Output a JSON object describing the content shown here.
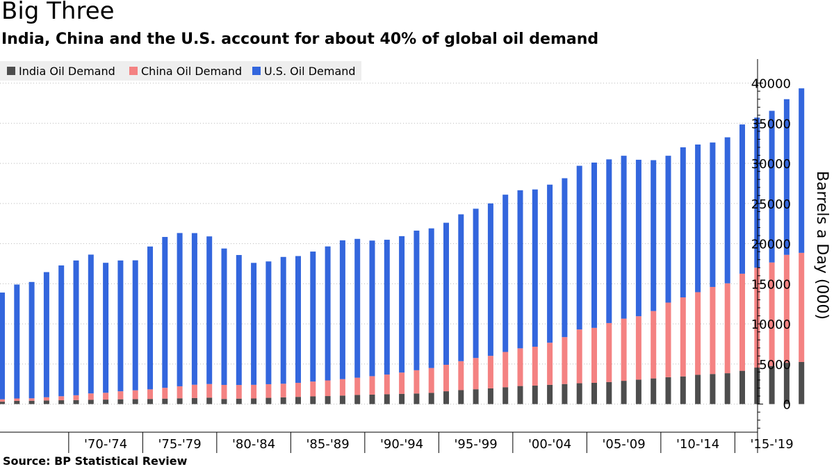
{
  "title": "Big Three",
  "subtitle": "India, China and the U.S. account for about 40% of global oil demand",
  "source": "Source:  BP Statistical Review",
  "colors": {
    "india": "#4d4d4d",
    "china": "#f48282",
    "us": "#3366dd"
  },
  "chart_data": {
    "type": "bar",
    "stacked": true,
    "x": [
      1965,
      1966,
      1967,
      1968,
      1969,
      1970,
      1971,
      1972,
      1973,
      1974,
      1975,
      1976,
      1977,
      1978,
      1979,
      1980,
      1981,
      1982,
      1983,
      1984,
      1985,
      1986,
      1987,
      1988,
      1989,
      1990,
      1991,
      1992,
      1993,
      1994,
      1995,
      1996,
      1997,
      1998,
      1999,
      2000,
      2001,
      2002,
      2003,
      2004,
      2005,
      2006,
      2007,
      2008,
      2009,
      2010,
      2011,
      2012,
      2013,
      2014,
      2015,
      2016,
      2017,
      2018,
      2019
    ],
    "series": [
      {
        "name": "India Oil Demand",
        "values": [
          300,
          400,
          420,
          450,
          480,
          500,
          530,
          560,
          600,
          620,
          640,
          680,
          720,
          760,
          800,
          640,
          680,
          700,
          780,
          840,
          900,
          960,
          1000,
          1060,
          1140,
          1180,
          1230,
          1280,
          1320,
          1400,
          1600,
          1750,
          1850,
          1960,
          2100,
          2250,
          2300,
          2400,
          2500,
          2600,
          2650,
          2750,
          2900,
          3050,
          3200,
          3350,
          3450,
          3650,
          3750,
          3850,
          4150,
          4550,
          4750,
          5150,
          5250
        ]
      },
      {
        "name": "China Oil Demand",
        "values": [
          300,
          300,
          300,
          400,
          500,
          600,
          800,
          850,
          1000,
          1100,
          1200,
          1350,
          1500,
          1650,
          1700,
          1750,
          1700,
          1700,
          1700,
          1700,
          1750,
          1850,
          1950,
          2050,
          2150,
          2300,
          2450,
          2650,
          2900,
          3100,
          3300,
          3600,
          3900,
          4050,
          4400,
          4700,
          4850,
          5250,
          5850,
          6700,
          6850,
          7350,
          7750,
          7900,
          8400,
          9300,
          9850,
          10300,
          10850,
          11200,
          12100,
          12450,
          12900,
          13450,
          13600
        ]
      },
      {
        "name": "U.S. Oil Demand",
        "values": [
          13300,
          14200,
          14500,
          15600,
          16300,
          16800,
          17300,
          16200,
          16300,
          16200,
          17800,
          18800,
          19100,
          18900,
          18400,
          17000,
          16200,
          15200,
          15300,
          15800,
          15800,
          16200,
          16700,
          17300,
          17300,
          16900,
          16800,
          17000,
          17400,
          17400,
          17700,
          18300,
          18600,
          19000,
          19600,
          19700,
          19600,
          19700,
          19800,
          20400,
          20600,
          20400,
          20300,
          19500,
          18800,
          18300,
          18700,
          18400,
          18000,
          18200,
          18600,
          18700,
          18900,
          19400,
          20500
        ]
      }
    ],
    "xtick_labels": [
      "'70-'74",
      "'75-'79",
      "'80-'84",
      "'85-'89",
      "'90-'94",
      "'95-'99",
      "'00-'04",
      "'05-'09",
      "'10-'14",
      "'15-'19"
    ],
    "yticks": [
      0,
      5000,
      10000,
      15000,
      20000,
      25000,
      30000,
      35000,
      40000
    ],
    "ylim": [
      -3500,
      43000
    ],
    "ylabel": "Barrels a Day (000)",
    "legend": [
      "India Oil Demand",
      "China Oil Demand",
      "U.S. Oil Demand"
    ],
    "legend_position": "top-left",
    "grid": "horizontal dotted",
    "yaxis_side": "right"
  }
}
